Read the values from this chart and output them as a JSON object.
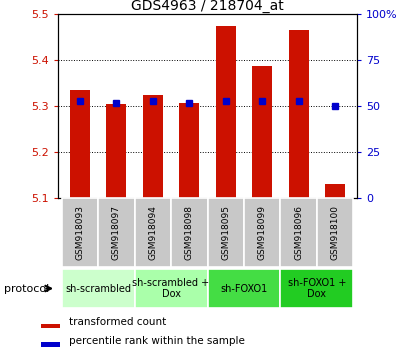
{
  "title": "GDS4963 / 218704_at",
  "samples": [
    "GSM918093",
    "GSM918097",
    "GSM918094",
    "GSM918098",
    "GSM918095",
    "GSM918099",
    "GSM918096",
    "GSM918100"
  ],
  "red_values": [
    5.335,
    5.305,
    5.325,
    5.308,
    5.475,
    5.388,
    5.465,
    5.13
  ],
  "blue_values": [
    53,
    52,
    53,
    52,
    53,
    53,
    53,
    50
  ],
  "ylim_left": [
    5.1,
    5.5
  ],
  "ylim_right": [
    0,
    100
  ],
  "yticks_left": [
    5.1,
    5.2,
    5.3,
    5.4,
    5.5
  ],
  "yticks_right": [
    0,
    25,
    50,
    75,
    100
  ],
  "ytick_labels_right": [
    "0",
    "25",
    "50",
    "75",
    "100%"
  ],
  "bar_color": "#cc1100",
  "dot_color": "#0000cc",
  "label_bg": "#c8c8c8",
  "group_spans": [
    {
      "start": 0,
      "end": 1,
      "label": "sh-scrambled",
      "color": "#ccffcc"
    },
    {
      "start": 2,
      "end": 3,
      "label": "sh-scrambled +\nDox",
      "color": "#aaffaa"
    },
    {
      "start": 4,
      "end": 5,
      "label": "sh-FOXO1",
      "color": "#44dd44"
    },
    {
      "start": 6,
      "end": 7,
      "label": "sh-FOXO1 +\nDox",
      "color": "#22cc22"
    }
  ],
  "legend_red": "transformed count",
  "legend_blue": "percentile rank within the sample",
  "protocol_label": "protocol",
  "bar_width": 0.55
}
